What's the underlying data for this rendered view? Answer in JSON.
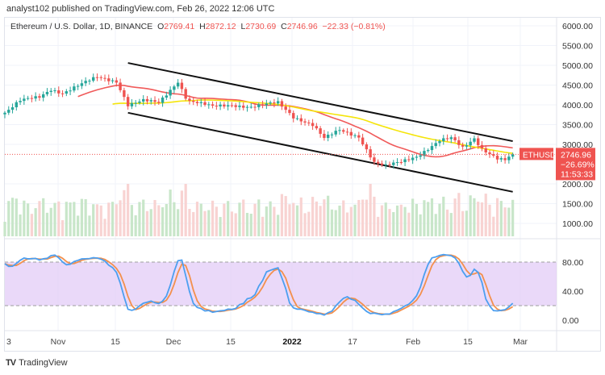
{
  "header": {
    "published": "analyst102 published on TradingView.com, Feb 26, 2022 12:06 UTC"
  },
  "legend": {
    "symbol": "Ethereum / U.S. Dollar, 1D, BINANCE",
    "open_label": "O",
    "open": "2769.41",
    "high_label": "H",
    "high": "2872.12",
    "low_label": "L",
    "low": "2730.69",
    "close_label": "C",
    "close": "2746.96",
    "change": "−22.33 (−0.81%)"
  },
  "price_tag": {
    "symbol": "ETHUSD",
    "price": "2746.96",
    "change_pct": "−26.69%",
    "countdown": "11:53:33"
  },
  "footer": {
    "brand": "TradingView"
  },
  "colors": {
    "up": "#26a69a",
    "down": "#ef5350",
    "ma_fast": "#f05a5a",
    "ma_slow": "#f5e50a",
    "stoch_k": "#4c9ff0",
    "stoch_d": "#f3904d",
    "stoch_band": "#e1c9f7"
  },
  "chart_data": [
    {
      "type": "candlestick",
      "ylim": [
        500,
        6200
      ],
      "yticks": [
        "6000.00",
        "5500.00",
        "5000.00",
        "4500.00",
        "4000.00",
        "3500.00",
        "3000.00",
        "2000.00",
        "1500.00",
        "1000.00"
      ],
      "xticks": [
        "3",
        "Nov",
        "15",
        "Dec",
        "15",
        "2022",
        "17",
        "Feb",
        "15",
        "Mar"
      ],
      "anchors": [
        [
          "2021-10-17",
          3800
        ],
        [
          "2021-10-21",
          4100
        ],
        [
          "2021-10-26",
          4200
        ],
        [
          "2021-10-29",
          4400
        ],
        [
          "2021-11-01",
          4300
        ],
        [
          "2021-11-10",
          4700
        ],
        [
          "2021-11-15",
          4600
        ],
        [
          "2021-11-18",
          4000
        ],
        [
          "2021-11-22",
          4100
        ],
        [
          "2021-11-26",
          4050
        ],
        [
          "2021-12-01",
          4600
        ],
        [
          "2021-12-03",
          4200
        ],
        [
          "2021-12-04",
          4100
        ],
        [
          "2021-12-10",
          3950
        ],
        [
          "2021-12-15",
          4000
        ],
        [
          "2021-12-20",
          3950
        ],
        [
          "2021-12-27",
          4050
        ],
        [
          "2021-12-31",
          3700
        ],
        [
          "2022-01-05",
          3500
        ],
        [
          "2022-01-08",
          3150
        ],
        [
          "2022-01-12",
          3350
        ],
        [
          "2022-01-17",
          3200
        ],
        [
          "2022-01-21",
          2550
        ],
        [
          "2022-01-24",
          2450
        ],
        [
          "2022-01-28",
          2550
        ],
        [
          "2022-02-01",
          2700
        ],
        [
          "2022-02-07",
          3100
        ],
        [
          "2022-02-10",
          3150
        ],
        [
          "2022-02-13",
          2900
        ],
        [
          "2022-02-16",
          3150
        ],
        [
          "2022-02-18",
          2900
        ],
        [
          "2022-02-22",
          2650
        ],
        [
          "2022-02-24",
          2600
        ],
        [
          "2022-02-26",
          2746.96
        ]
      ],
      "channel": {
        "upper": [
          [
            "2021-11-18",
            5060
          ],
          [
            "2022-02-26",
            3080
          ]
        ],
        "lower": [
          [
            "2021-11-18",
            3800
          ],
          [
            "2022-02-26",
            1800
          ]
        ]
      },
      "moving_averages": [
        {
          "period": 20,
          "color": "ma_fast"
        },
        {
          "period": 50,
          "color": "ma_slow"
        }
      ]
    },
    {
      "type": "line",
      "indicator": "stochastic",
      "ylim": [
        -15,
        100
      ],
      "yticks": [
        "80.00",
        "40.00",
        "0.00"
      ],
      "band": [
        20,
        80
      ]
    }
  ]
}
